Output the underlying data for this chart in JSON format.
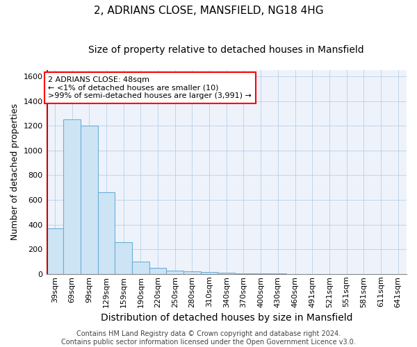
{
  "title1": "2, ADRIANS CLOSE, MANSFIELD, NG18 4HG",
  "title2": "Size of property relative to detached houses in Mansfield",
  "xlabel": "Distribution of detached houses by size in Mansfield",
  "ylabel": "Number of detached properties",
  "categories": [
    "39sqm",
    "69sqm",
    "99sqm",
    "129sqm",
    "159sqm",
    "190sqm",
    "220sqm",
    "250sqm",
    "280sqm",
    "310sqm",
    "340sqm",
    "370sqm",
    "400sqm",
    "430sqm",
    "460sqm",
    "491sqm",
    "521sqm",
    "551sqm",
    "581sqm",
    "611sqm",
    "641sqm"
  ],
  "values": [
    370,
    1250,
    1200,
    660,
    260,
    100,
    50,
    30,
    20,
    15,
    10,
    5,
    5,
    3,
    2,
    1,
    1,
    0,
    0,
    0,
    0
  ],
  "bar_color": "#cde4f5",
  "bar_edge_color": "#6aaed6",
  "ylim": [
    0,
    1650
  ],
  "yticks": [
    0,
    200,
    400,
    600,
    800,
    1000,
    1200,
    1400,
    1600
  ],
  "grid_color": "#b8cfe8",
  "background_color": "#eef3fb",
  "annotation_line1": "2 ADRIANS CLOSE: 48sqm",
  "annotation_line2": "← <1% of detached houses are smaller (10)",
  "annotation_line3": ">99% of semi-detached houses are larger (3,991) →",
  "footer_text": "Contains HM Land Registry data © Crown copyright and database right 2024.\nContains public sector information licensed under the Open Government Licence v3.0.",
  "title1_fontsize": 11,
  "title2_fontsize": 10,
  "xlabel_fontsize": 10,
  "ylabel_fontsize": 9,
  "tick_fontsize": 8,
  "annotation_fontsize": 8,
  "footer_fontsize": 7
}
